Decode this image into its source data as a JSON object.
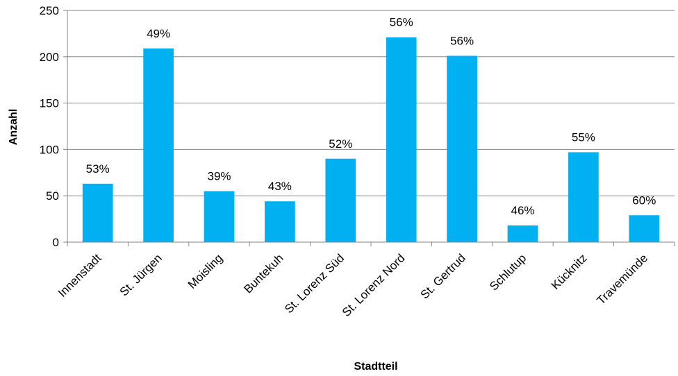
{
  "chart_data": {
    "type": "bar",
    "title": "",
    "xlabel": "Stadtteil",
    "ylabel": "Anzahl",
    "ylim": [
      0,
      250
    ],
    "yticks": [
      0,
      50,
      100,
      150,
      200,
      250
    ],
    "grid": true,
    "legend": "none",
    "bar_color": "#00b0f0",
    "grid_color": "#868686",
    "categories": [
      "Innenstadt",
      "St. Jürgen",
      "Moisling",
      "Buntekuh",
      "St. Lorenz Süd",
      "St. Lorenz Nord",
      "St. Gertrud",
      "Schlutup",
      "Kücknitz",
      "Travemünde"
    ],
    "values": [
      63,
      209,
      55,
      44,
      90,
      221,
      201,
      18,
      97,
      29
    ],
    "labels": [
      "53%",
      "49%",
      "39%",
      "43%",
      "52%",
      "56%",
      "56%",
      "46%",
      "55%",
      "60%"
    ]
  }
}
